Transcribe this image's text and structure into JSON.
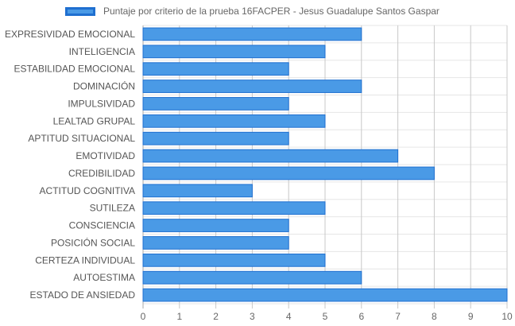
{
  "chart_data": {
    "type": "bar",
    "orientation": "horizontal",
    "categories": [
      "EXPRESIVIDAD EMOCIONAL",
      "INTELIGENCIA",
      "ESTABILIDAD EMOCIONAL",
      "DOMINACIÓN",
      "IMPULSIVIDAD",
      "LEALTAD GRUPAL",
      "APTITUD SITUACIONAL",
      "EMOTIVIDAD",
      "CREDIBILIDAD",
      "ACTITUD COGNITIVA",
      "SUTILEZA",
      "CONSCIENCIA",
      "POSICIÓN SOCIAL",
      "CERTEZA INDIVIDUAL",
      "AUTOESTIMA",
      "ESTADO DE ANSIEDAD"
    ],
    "series": [
      {
        "name": "Puntaje por criterio de la prueba 16FACPER - Jesus Guadalupe Santos Gaspar",
        "values": [
          6,
          5,
          4,
          6,
          4,
          5,
          4,
          7,
          8,
          3,
          5,
          4,
          4,
          5,
          6,
          10
        ],
        "color": "#4a9ae6",
        "border_color": "#1f6fd0"
      }
    ],
    "xlim": [
      0,
      10
    ],
    "x_ticks": [
      "0",
      "1",
      "2",
      "3",
      "4",
      "5",
      "6",
      "7",
      "8",
      "9",
      "10"
    ],
    "grid": true,
    "legend_position": "top"
  }
}
